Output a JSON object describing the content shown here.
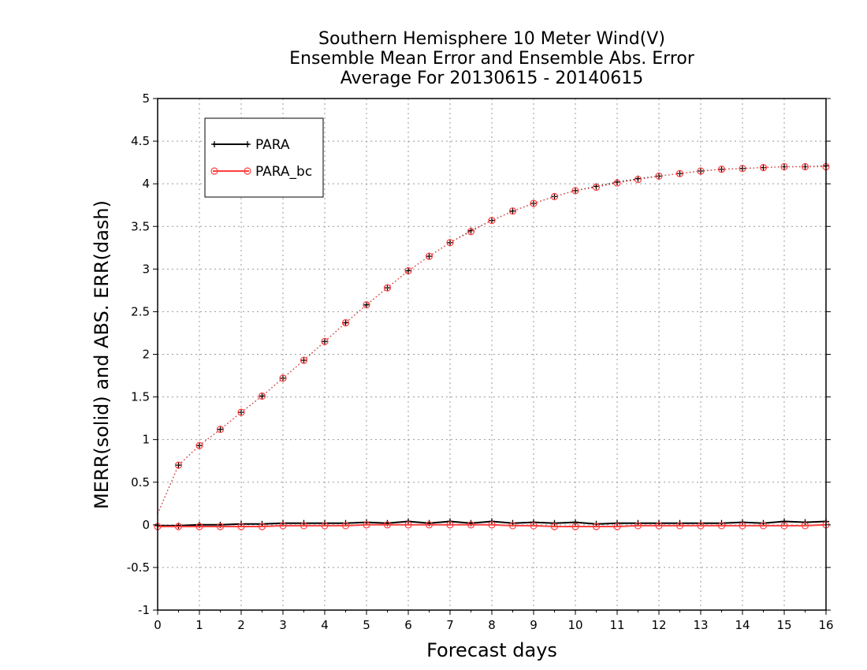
{
  "chart_data": {
    "type": "line",
    "title_lines": [
      "Southern Hemisphere 10 Meter Wind(V)",
      "Ensemble Mean Error and Ensemble Abs. Error",
      "Average For 20130615 - 20140615"
    ],
    "xlabel": "Forecast days",
    "ylabel": "MERR(solid) and ABS. ERR(dash)",
    "xlim": [
      0,
      16
    ],
    "ylim": [
      -1,
      5
    ],
    "x_ticks": [
      "0",
      "1",
      "2",
      "3",
      "4",
      "5",
      "6",
      "7",
      "8",
      "9",
      "10",
      "11",
      "12",
      "13",
      "14",
      "15",
      "16"
    ],
    "y_ticks": [
      "-1",
      "-0.5",
      "0",
      "0.5",
      "1",
      "1.5",
      "2",
      "2.5",
      "3",
      "3.5",
      "4",
      "4.5",
      "5"
    ],
    "grid": true,
    "legend_position": "top-left",
    "x": [
      0,
      0.5,
      1,
      1.5,
      2,
      2.5,
      3,
      3.5,
      4,
      4.5,
      5,
      5.5,
      6,
      6.5,
      7,
      7.5,
      8,
      8.5,
      9,
      9.5,
      10,
      10.5,
      11,
      11.5,
      12,
      12.5,
      13,
      13.5,
      14,
      14.5,
      15,
      15.5,
      16
    ],
    "series": [
      {
        "name": "PARA",
        "kind": "merr",
        "color": "#000000",
        "style": "solid",
        "marker": "plus",
        "values": [
          -0.01,
          -0.01,
          0.0,
          0.0,
          0.01,
          0.01,
          0.02,
          0.02,
          0.02,
          0.02,
          0.03,
          0.02,
          0.04,
          0.02,
          0.04,
          0.02,
          0.04,
          0.02,
          0.03,
          0.02,
          0.03,
          0.01,
          0.02,
          0.02,
          0.02,
          0.02,
          0.02,
          0.02,
          0.03,
          0.02,
          0.04,
          0.03,
          0.04
        ]
      },
      {
        "name": "PARA_bc",
        "kind": "merr",
        "color": "#ff4040",
        "style": "solid",
        "marker": "circle",
        "values": [
          -0.02,
          -0.02,
          -0.02,
          -0.02,
          -0.02,
          -0.02,
          -0.01,
          -0.01,
          -0.01,
          -0.01,
          0.0,
          0.0,
          0.0,
          0.0,
          0.0,
          0.0,
          0.0,
          -0.01,
          -0.01,
          -0.02,
          -0.02,
          -0.02,
          -0.02,
          -0.01,
          -0.01,
          -0.01,
          -0.01,
          -0.01,
          -0.01,
          -0.01,
          -0.01,
          -0.01,
          0.0
        ]
      },
      {
        "name": "PARA",
        "kind": "abs_err",
        "color": "#000000",
        "style": "dotted",
        "marker": "plus",
        "values": [
          0.13,
          0.7,
          0.93,
          1.12,
          1.32,
          1.51,
          1.72,
          1.93,
          2.15,
          2.37,
          2.58,
          2.78,
          2.98,
          3.15,
          3.31,
          3.45,
          3.57,
          3.68,
          3.77,
          3.85,
          3.92,
          3.97,
          4.02,
          4.06,
          4.09,
          4.12,
          4.15,
          4.17,
          4.18,
          4.19,
          4.2,
          4.2,
          4.21
        ]
      },
      {
        "name": "PARA_bc",
        "kind": "abs_err",
        "color": "#ff4040",
        "style": "dotted",
        "marker": "circle",
        "values": [
          0.13,
          0.7,
          0.93,
          1.12,
          1.32,
          1.51,
          1.72,
          1.93,
          2.15,
          2.37,
          2.58,
          2.78,
          2.98,
          3.15,
          3.31,
          3.44,
          3.57,
          3.68,
          3.77,
          3.85,
          3.92,
          3.96,
          4.01,
          4.05,
          4.09,
          4.12,
          4.15,
          4.17,
          4.18,
          4.19,
          4.2,
          4.2,
          4.2
        ]
      }
    ],
    "legend": [
      {
        "label": "PARA",
        "color": "#000000",
        "marker": "plus"
      },
      {
        "label": "PARA_bc",
        "color": "#ff4040",
        "marker": "circle"
      }
    ]
  }
}
